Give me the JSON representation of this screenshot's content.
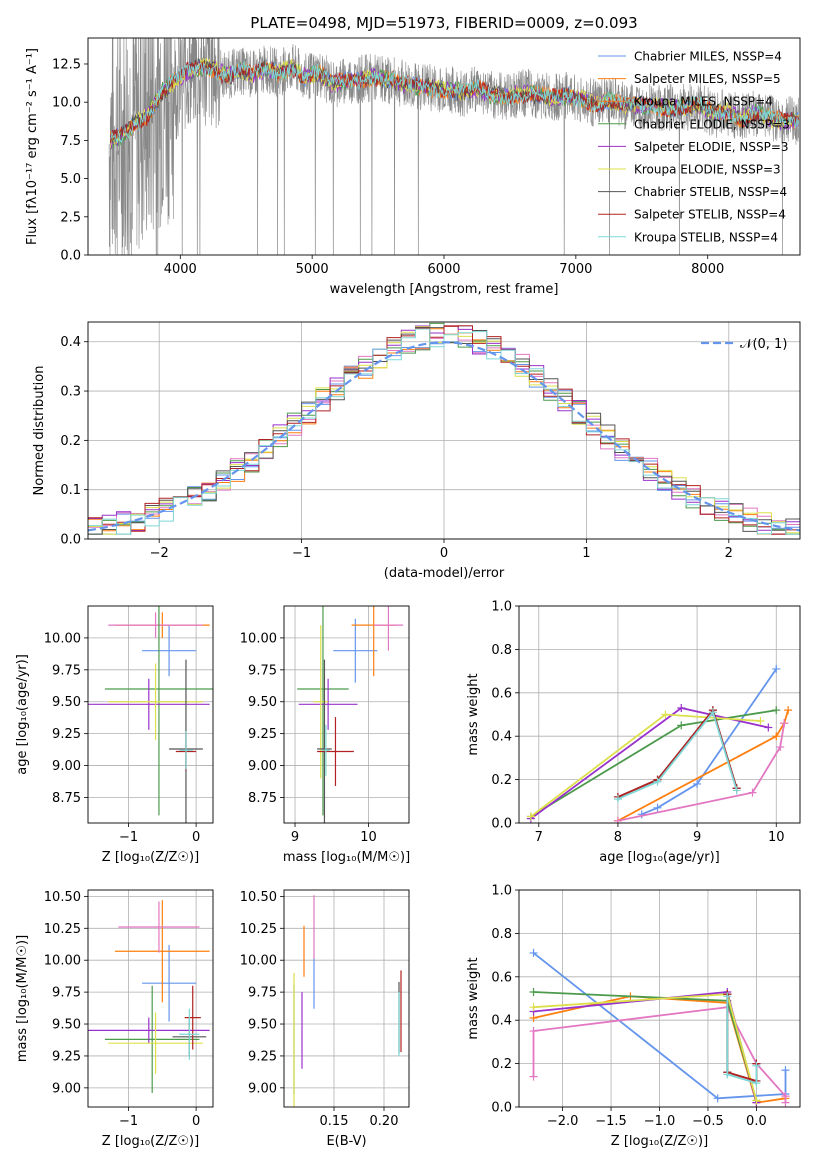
{
  "chart_data": [
    {
      "type": "line",
      "title": "PLATE=0498, MJD=51973, FIBERID=0009, z=0.093",
      "xlabel": "wavelength [Angstrom, rest frame]",
      "ylabel": "Flux [fλ10⁻¹⁷ erg cm⁻² s⁻¹ A⁻¹]",
      "xlim": [
        3300,
        8700
      ],
      "ylim": [
        0,
        14.2
      ],
      "xticks": [
        "4000",
        "5000",
        "6000",
        "7000",
        "8000"
      ],
      "yticks": [
        "0.0",
        "2.5",
        "5.0",
        "7.5",
        "10.0",
        "12.5"
      ],
      "legend_position": "right",
      "series": [
        {
          "name": "Chabrier MILES, NSSP=4",
          "color": "#6495ed"
        },
        {
          "name": "Salpeter MILES, NSSP=5",
          "color": "#ff7f0e"
        },
        {
          "name": "Kroupa MILES, NSSP=4",
          "color": "#f08030"
        },
        {
          "name": "Chabrier ELODIE, NSSP=3",
          "color": "#4c9a4c"
        },
        {
          "name": "Salpeter ELODIE, NSSP=3",
          "color": "#9932cc"
        },
        {
          "name": "Kroupa ELODIE, NSSP=3",
          "color": "#dde04a"
        },
        {
          "name": "Chabrier STELIB, NSSP=4",
          "color": "#555555"
        },
        {
          "name": "Salpeter STELIB, NSSP=4",
          "color": "#b22222"
        },
        {
          "name": "Kroupa STELIB, NSSP=4",
          "color": "#7fd7d7"
        }
      ],
      "spectrum": {
        "x": [
          3450,
          3550,
          3650,
          3750,
          3850,
          3950,
          4050,
          4150,
          4250,
          4350,
          4450,
          4550,
          4650,
          4750,
          4850,
          4950,
          5050,
          5150,
          5250,
          5350,
          5450,
          5550,
          5650,
          5750,
          5850,
          5950,
          6050,
          6150,
          6250,
          6350,
          6450,
          6550,
          6650,
          6750,
          6850,
          6950,
          7050,
          7150,
          7250,
          7350,
          7450,
          7550,
          7650,
          7750,
          7850,
          7950,
          8050,
          8150,
          8250,
          8350,
          8450,
          8550
        ],
        "model": [
          7.4,
          7.8,
          8.6,
          9.1,
          10.6,
          11.3,
          12.0,
          12.3,
          12.2,
          11.7,
          12.1,
          11.8,
          12.2,
          11.9,
          12.3,
          11.6,
          11.9,
          11.2,
          11.4,
          11.5,
          11.6,
          11.5,
          11.3,
          11.1,
          11.0,
          10.9,
          10.8,
          10.6,
          10.9,
          10.5,
          10.4,
          10.5,
          10.6,
          10.4,
          10.3,
          10.4,
          10.2,
          9.9,
          10.1,
          9.8,
          9.8,
          9.8,
          9.7,
          9.6,
          9.7,
          9.8,
          9.2,
          9.4,
          8.9,
          9.3,
          9.0,
          8.8
        ]
      }
    },
    {
      "type": "step",
      "xlabel": "(data-model)/error",
      "ylabel": "Normed distribution",
      "xlim": [
        -2.5,
        2.5
      ],
      "ylim": [
        0,
        0.44
      ],
      "xticks": [
        "−2",
        "−1",
        "0",
        "1",
        "2"
      ],
      "yticks": [
        "0.0",
        "0.1",
        "0.2",
        "0.3",
        "0.4"
      ],
      "legend": [
        "𝒩(0, 1)"
      ],
      "legend_position": "top-right",
      "bin_width": 0.1
    },
    {
      "type": "scatter",
      "xlabel": "Z [log₁₀(Z/Z☉)]",
      "ylabel": "age  [log₁₀(age/yr)]",
      "xlim": [
        -1.6,
        0.25
      ],
      "ylim": [
        8.55,
        10.25
      ],
      "xticks": [
        "−1",
        "0"
      ],
      "yticks": [
        "8.75",
        "9.00",
        "9.25",
        "9.50",
        "9.75",
        "10.00"
      ],
      "points": [
        {
          "x": -0.4,
          "y": 9.9,
          "xerr": 0.4,
          "yerr": 0.2,
          "color": "#6495ed"
        },
        {
          "x": -0.5,
          "y": 10.1,
          "xerr": 0.7,
          "yerr": 0.1,
          "color": "#ff7f0e"
        },
        {
          "x": -0.6,
          "y": 10.1,
          "xerr": 0.7,
          "yerr": 0.1,
          "color": "#e377c2"
        },
        {
          "x": -0.55,
          "y": 9.6,
          "xerr": 0.8,
          "yerr": 0.99,
          "color": "#4c9a4c"
        },
        {
          "x": -0.7,
          "y": 9.48,
          "xerr": 0.9,
          "yerr": 0.2,
          "color": "#9932cc"
        },
        {
          "x": -0.6,
          "y": 9.5,
          "xerr": 0.7,
          "yerr": 0.3,
          "color": "#dde04a"
        },
        {
          "x": -0.15,
          "y": 9.13,
          "xerr": 0.25,
          "yerr": 0.7,
          "color": "#555555"
        },
        {
          "x": -0.15,
          "y": 9.11,
          "xerr": 0.15,
          "yerr": 0.15,
          "color": "#b22222"
        },
        {
          "x": -0.15,
          "y": 9.12,
          "xerr": 0.1,
          "yerr": 0.15,
          "color": "#7fd7d7"
        }
      ]
    },
    {
      "type": "scatter",
      "xlabel": "mass [log₁₀(M/M☉)]",
      "xlim": [
        8.85,
        10.55
      ],
      "ylim": [
        8.55,
        10.25
      ],
      "xticks": [
        "9",
        "10"
      ],
      "yticks": [
        "8.75",
        "9.00",
        "9.25",
        "9.50",
        "9.75",
        "10.00"
      ],
      "points": [
        {
          "x": 9.82,
          "y": 9.9,
          "xerr": 0.3,
          "yerr": 0.25,
          "color": "#6495ed"
        },
        {
          "x": 10.07,
          "y": 10.1,
          "xerr": 0.3,
          "yerr": 0.4,
          "color": "#ff7f0e"
        },
        {
          "x": 10.27,
          "y": 10.1,
          "xerr": 0.2,
          "yerr": 0.2,
          "color": "#e377c2"
        },
        {
          "x": 9.38,
          "y": 9.6,
          "xerr": 0.35,
          "yerr": 0.99,
          "color": "#4c9a4c"
        },
        {
          "x": 9.45,
          "y": 9.48,
          "xerr": 0.4,
          "yerr": 0.2,
          "color": "#9932cc"
        },
        {
          "x": 9.35,
          "y": 9.5,
          "xerr": 0.1,
          "yerr": 0.6,
          "color": "#dde04a"
        },
        {
          "x": 9.4,
          "y": 9.13,
          "xerr": 0.1,
          "yerr": 0.7,
          "color": "#555555"
        },
        {
          "x": 9.55,
          "y": 9.11,
          "xerr": 0.25,
          "yerr": 0.27,
          "color": "#b22222"
        },
        {
          "x": 9.42,
          "y": 9.12,
          "xerr": 0.05,
          "yerr": 0.2,
          "color": "#7fd7d7"
        }
      ]
    },
    {
      "type": "line",
      "xlabel": "age  [log₁₀(age/yr)]",
      "ylabel": "mass weight",
      "xlim": [
        6.75,
        10.3
      ],
      "ylim": [
        0,
        1.0
      ],
      "xticks": [
        "7",
        "8",
        "9",
        "10"
      ],
      "yticks": [
        "0.0",
        "0.2",
        "0.4",
        "0.6",
        "0.8",
        "1.0"
      ],
      "series": [
        {
          "color": "#6495ed",
          "x": [
            8.3,
            8.5,
            9.0,
            10.0
          ],
          "y": [
            0.04,
            0.07,
            0.18,
            0.71
          ]
        },
        {
          "color": "#ff7f0e",
          "x": [
            8.0,
            10.0,
            10.1,
            10.15
          ],
          "y": [
            0.01,
            0.4,
            0.46,
            0.52
          ]
        },
        {
          "color": "#e377c2",
          "x": [
            8.0,
            9.7,
            10.05,
            10.1
          ],
          "y": [
            0.01,
            0.14,
            0.35,
            0.46
          ]
        },
        {
          "color": "#4c9a4c",
          "x": [
            6.9,
            8.8,
            10.0
          ],
          "y": [
            0.03,
            0.45,
            0.52
          ]
        },
        {
          "color": "#9932cc",
          "x": [
            6.9,
            8.8,
            9.9
          ],
          "y": [
            0.02,
            0.53,
            0.44
          ]
        },
        {
          "color": "#dde04a",
          "x": [
            6.9,
            8.6,
            9.8
          ],
          "y": [
            0.03,
            0.5,
            0.47
          ]
        },
        {
          "color": "#555555",
          "x": [
            8.0,
            8.5,
            9.2,
            9.5
          ],
          "y": [
            0.12,
            0.2,
            0.52,
            0.16
          ]
        },
        {
          "color": "#b22222",
          "x": [
            8.0,
            8.5,
            9.2,
            9.5
          ],
          "y": [
            0.12,
            0.2,
            0.52,
            0.16
          ]
        },
        {
          "color": "#7fd7d7",
          "x": [
            8.0,
            8.5,
            9.2,
            9.5
          ],
          "y": [
            0.11,
            0.19,
            0.51,
            0.15
          ]
        }
      ]
    },
    {
      "type": "scatter",
      "xlabel": "Z [log₁₀(Z/Z☉)]",
      "ylabel": "mass [log₁₀(M/M☉)]",
      "xlim": [
        -1.6,
        0.25
      ],
      "ylim": [
        8.85,
        10.55
      ],
      "xticks": [
        "−1",
        "0"
      ],
      "yticks": [
        "9.00",
        "9.25",
        "9.50",
        "9.75",
        "10.00",
        "10.25",
        "10.50"
      ],
      "points": [
        {
          "x": -0.4,
          "y": 9.82,
          "xerr": 0.4,
          "yerr": 0.3,
          "color": "#6495ed"
        },
        {
          "x": -0.5,
          "y": 10.07,
          "xerr": 0.7,
          "yerr": 0.4,
          "color": "#ff7f0e"
        },
        {
          "x": -0.55,
          "y": 10.26,
          "xerr": 0.6,
          "yerr": 0.2,
          "color": "#e377c2"
        },
        {
          "x": -0.65,
          "y": 9.38,
          "xerr": 0.7,
          "yerr": 0.42,
          "color": "#4c9a4c"
        },
        {
          "x": -0.7,
          "y": 9.45,
          "xerr": 0.9,
          "yerr": 0.1,
          "color": "#9932cc"
        },
        {
          "x": -0.6,
          "y": 9.35,
          "xerr": 0.7,
          "yerr": 0.24,
          "color": "#dde04a"
        },
        {
          "x": -0.1,
          "y": 9.4,
          "xerr": 0.25,
          "yerr": 0.15,
          "color": "#555555"
        },
        {
          "x": -0.05,
          "y": 9.55,
          "xerr": 0.12,
          "yerr": 0.25,
          "color": "#b22222"
        },
        {
          "x": -0.1,
          "y": 9.42,
          "xerr": 0.15,
          "yerr": 0.2,
          "color": "#7fd7d7"
        }
      ]
    },
    {
      "type": "scatter",
      "xlabel": "E(B-V)",
      "xlim": [
        0.1,
        0.225
      ],
      "ylim": [
        8.85,
        10.55
      ],
      "xticks": [
        "0.15",
        "0.20"
      ],
      "yticks": [
        "9.00",
        "9.25",
        "9.50",
        "9.75",
        "10.00",
        "10.25",
        "10.50"
      ],
      "points": [
        {
          "x": 0.13,
          "y": 9.82,
          "yerr": 0.2,
          "color": "#6495ed"
        },
        {
          "x": 0.12,
          "y": 10.07,
          "yerr": 0.2,
          "color": "#ff7f0e"
        },
        {
          "x": 0.13,
          "y": 10.26,
          "yerr": 0.25,
          "color": "#e377c2"
        },
        {
          "x": 0.11,
          "y": 9.38,
          "yerr": 0.43,
          "color": "#4c9a4c"
        },
        {
          "x": 0.118,
          "y": 9.45,
          "yerr": 0.3,
          "color": "#9932cc"
        },
        {
          "x": 0.11,
          "y": 9.35,
          "yerr": 0.55,
          "color": "#dde04a"
        },
        {
          "x": 0.215,
          "y": 9.55,
          "yerr": 0.28,
          "color": "#555555"
        },
        {
          "x": 0.217,
          "y": 9.6,
          "yerr": 0.32,
          "color": "#b22222"
        },
        {
          "x": 0.215,
          "y": 9.5,
          "yerr": 0.25,
          "color": "#7fd7d7"
        }
      ]
    },
    {
      "type": "line",
      "xlabel": "Z [log₁₀(Z/Z☉)]",
      "ylabel": "mass weight",
      "xlim": [
        -2.45,
        0.45
      ],
      "ylim": [
        0,
        1.0
      ],
      "xticks": [
        "−2.0",
        "−1.5",
        "−1.0",
        "−0.5",
        "0.0"
      ],
      "yticks": [
        "0.0",
        "0.2",
        "0.4",
        "0.6",
        "0.8",
        "1.0"
      ],
      "series": [
        {
          "color": "#6495ed",
          "x": [
            -2.3,
            -0.4,
            0.3,
            0.3
          ],
          "y": [
            0.71,
            0.04,
            0.06,
            0.17
          ]
        },
        {
          "color": "#ff7f0e",
          "x": [
            -2.3,
            -1.3,
            -0.3,
            0.0,
            0.3
          ],
          "y": [
            0.41,
            0.51,
            0.48,
            0.02,
            0.04
          ]
        },
        {
          "color": "#e377c2",
          "x": [
            -2.3,
            -2.3,
            -0.3,
            0.0,
            0.3,
            0.3
          ],
          "y": [
            0.14,
            0.35,
            0.46,
            0.2,
            0.05,
            0.02
          ]
        },
        {
          "color": "#4c9a4c",
          "x": [
            -2.3,
            -0.3,
            0.0
          ],
          "y": [
            0.53,
            0.49,
            0.03
          ]
        },
        {
          "color": "#9932cc",
          "x": [
            -2.3,
            -0.3,
            0.0
          ],
          "y": [
            0.44,
            0.53,
            0.02
          ]
        },
        {
          "color": "#dde04a",
          "x": [
            -2.3,
            -0.3,
            0.0
          ],
          "y": [
            0.46,
            0.52,
            0.03
          ]
        },
        {
          "color": "#555555",
          "x": [
            -0.3,
            -0.3,
            0.0,
            0.0
          ],
          "y": [
            0.52,
            0.16,
            0.12,
            0.2
          ]
        },
        {
          "color": "#b22222",
          "x": [
            -0.3,
            -0.3,
            0.0,
            0.0
          ],
          "y": [
            0.52,
            0.16,
            0.12,
            0.2
          ]
        },
        {
          "color": "#7fd7d7",
          "x": [
            -0.3,
            -0.3,
            0.0,
            0.0
          ],
          "y": [
            0.51,
            0.15,
            0.11,
            0.19
          ]
        }
      ]
    }
  ]
}
